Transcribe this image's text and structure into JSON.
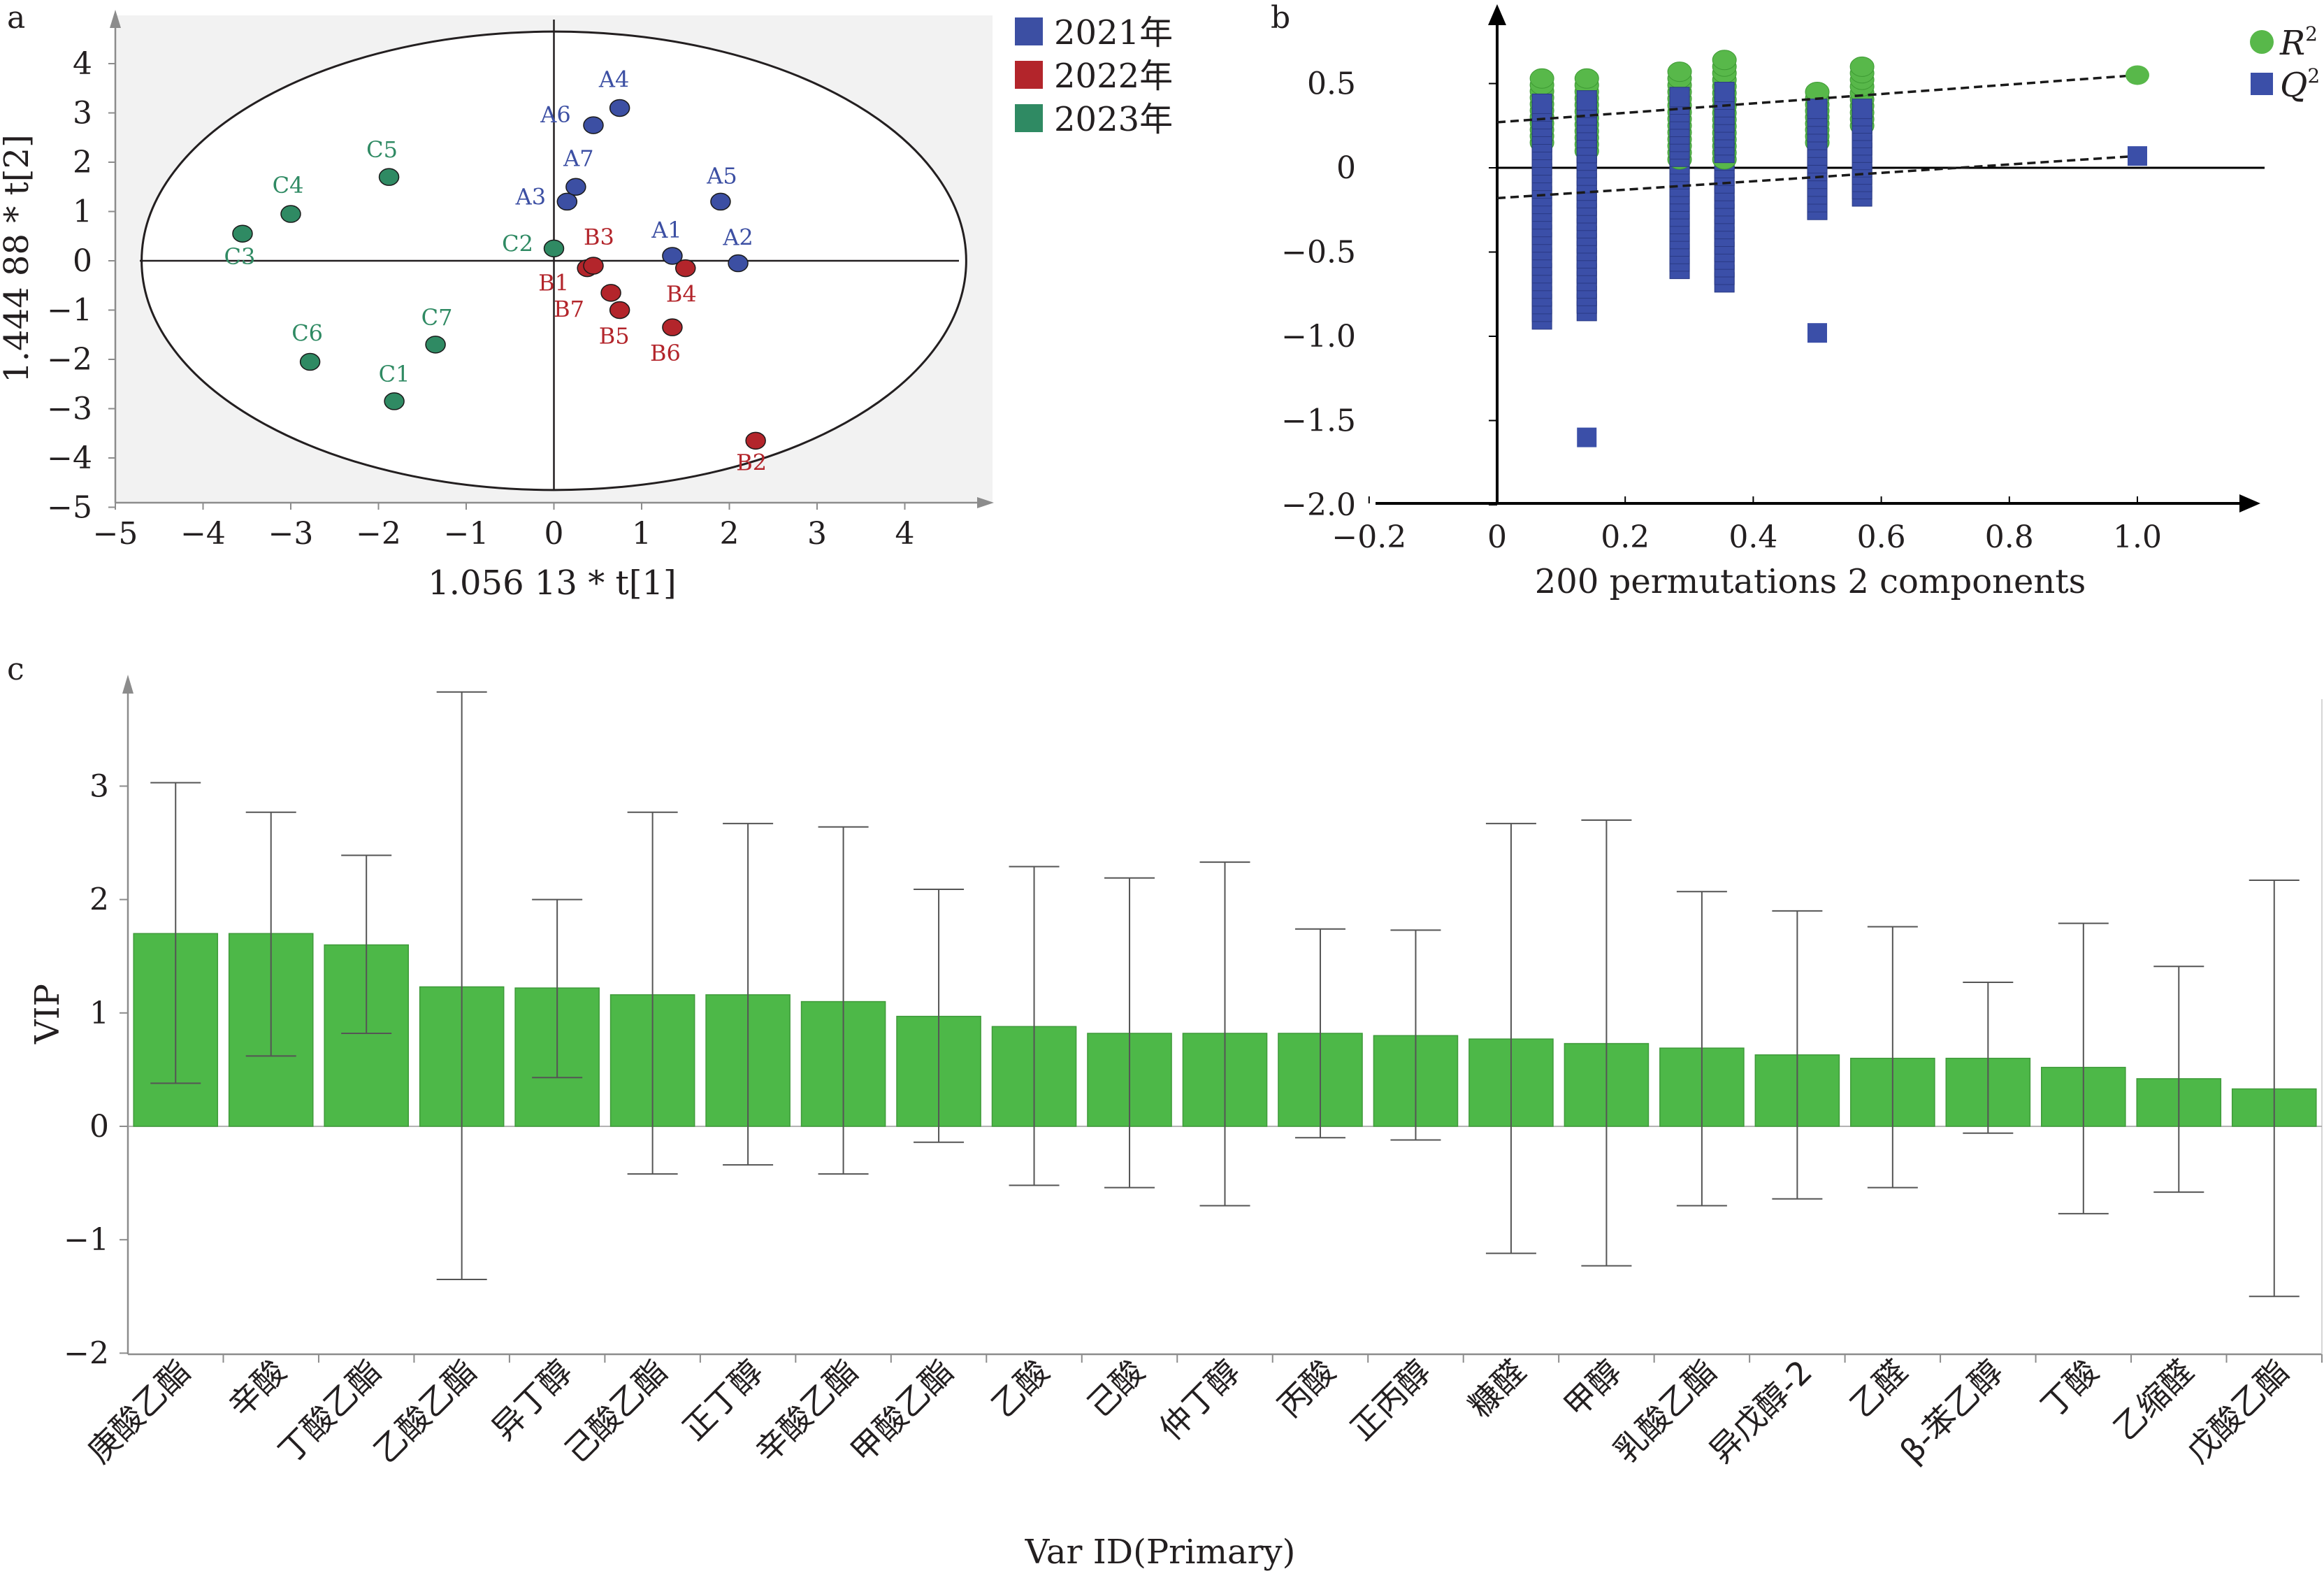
{
  "panels": {
    "a": {
      "letter": "a",
      "xlabel": "1.056 13 * t[1]",
      "ylabel": "1.444 88 * t[2]",
      "x_ticks": [
        "−5",
        "−4",
        "−3",
        "−2",
        "−1",
        "0",
        "1",
        "2",
        "3",
        "4"
      ],
      "y_ticks": [
        "4",
        "3",
        "2",
        "1",
        "0",
        "−1",
        "−2",
        "−3",
        "−4",
        "−5"
      ],
      "legend": [
        {
          "label": "2021年",
          "color": "#3c4fa3"
        },
        {
          "label": "2022年",
          "color": "#b3252b"
        },
        {
          "label": "2023年",
          "color": "#2f8a63"
        }
      ]
    },
    "b": {
      "letter": "b",
      "xlabel": "200 permutations 2 components",
      "x_ticks": [
        "−0.2",
        "0",
        "0.2",
        "0.4",
        "0.6",
        "0.8",
        "1.0"
      ],
      "y_ticks": [
        "0.5",
        "0",
        "−0.5",
        "−1.0",
        "−1.5",
        "−2.0"
      ],
      "legend": [
        {
          "label": "R",
          "sup": "2",
          "color": "#58b84a",
          "marker": "circle"
        },
        {
          "label": "Q",
          "sup": "2",
          "color": "#3b4fa8",
          "marker": "square"
        }
      ]
    },
    "c": {
      "letter": "c",
      "xlabel": "Var ID(Primary)",
      "ylabel": "VIP",
      "y_ticks": [
        "3",
        "2",
        "1",
        "0",
        "−1",
        "−2"
      ]
    }
  },
  "chart_data": [
    {
      "type": "scatter",
      "title": "",
      "xlabel": "1.056 13 * t[1]",
      "ylabel": "1.444 88 * t[2]",
      "xlim": [
        -5,
        5
      ],
      "ylim": [
        -5,
        4.5
      ],
      "ellipse": {
        "cx": 0,
        "cy": 0,
        "rx": 4.7,
        "ry": 4.65
      },
      "series": [
        {
          "name": "2021年",
          "color": "#3c4fa3",
          "points": [
            {
              "label": "A1",
              "x": 1.35,
              "y": 0.1
            },
            {
              "label": "A2",
              "x": 2.1,
              "y": -0.05
            },
            {
              "label": "A3",
              "x": 0.15,
              "y": 1.2
            },
            {
              "label": "A4",
              "x": 0.75,
              "y": 3.1
            },
            {
              "label": "A5",
              "x": 1.9,
              "y": 1.2
            },
            {
              "label": "A6",
              "x": 0.45,
              "y": 2.75
            },
            {
              "label": "A7",
              "x": 0.25,
              "y": 1.5
            }
          ]
        },
        {
          "name": "2022年",
          "color": "#b3252b",
          "points": [
            {
              "label": "B1",
              "x": 0.38,
              "y": -0.15
            },
            {
              "label": "B2",
              "x": 2.3,
              "y": -3.65
            },
            {
              "label": "B3",
              "x": 0.45,
              "y": -0.1
            },
            {
              "label": "B4",
              "x": 1.5,
              "y": -0.15
            },
            {
              "label": "B5",
              "x": 0.75,
              "y": -1.0
            },
            {
              "label": "B6",
              "x": 1.35,
              "y": -1.35
            },
            {
              "label": "B7",
              "x": 0.65,
              "y": -0.65
            }
          ]
        },
        {
          "name": "2023年",
          "color": "#2f8a63",
          "points": [
            {
              "label": "C1",
              "x": -1.82,
              "y": -2.85
            },
            {
              "label": "C2",
              "x": 0.0,
              "y": 0.25
            },
            {
              "label": "C3",
              "x": -3.55,
              "y": 0.55
            },
            {
              "label": "C4",
              "x": -3.0,
              "y": 0.95
            },
            {
              "label": "C5",
              "x": -1.88,
              "y": 1.7
            },
            {
              "label": "C6",
              "x": -2.78,
              "y": -2.05
            },
            {
              "label": "C7",
              "x": -1.35,
              "y": -1.7
            }
          ]
        }
      ]
    },
    {
      "type": "scatter",
      "title": "",
      "xlabel": "200 permutations 2 components",
      "xlim": [
        -0.2,
        1.2
      ],
      "ylim": [
        -2.0,
        0.8
      ],
      "series": [
        {
          "name": "R2",
          "marker": "circle",
          "color": "#58b84a",
          "x_groups": [
            0.07,
            0.14,
            0.285,
            0.355,
            0.5,
            0.57
          ],
          "ranges": [
            [
              0.15,
              0.53
            ],
            [
              0.1,
              0.53
            ],
            [
              0.05,
              0.57
            ],
            [
              0.05,
              0.64
            ],
            [
              0.15,
              0.45
            ],
            [
              0.25,
              0.6
            ]
          ],
          "original": {
            "x": 1.0,
            "y": 0.55
          },
          "fit_line": {
            "intercept": 0.27,
            "end": {
              "x": 1.0,
              "y": 0.55
            }
          }
        },
        {
          "name": "Q2",
          "marker": "square",
          "color": "#3b4fa8",
          "x_groups": [
            0.07,
            0.14,
            0.285,
            0.355,
            0.5,
            0.57
          ],
          "ranges": [
            [
              -0.9,
              0.38
            ],
            [
              -0.85,
              0.4
            ],
            [
              -0.6,
              0.42
            ],
            [
              -0.68,
              0.45
            ],
            [
              -0.25,
              0.35
            ],
            [
              -0.17,
              0.35
            ]
          ],
          "outliers": [
            {
              "x": 0.14,
              "y": -1.6
            },
            {
              "x": 0.5,
              "y": -0.98
            }
          ],
          "original": {
            "x": 1.0,
            "y": 0.07
          },
          "fit_line": {
            "intercept": -0.18,
            "end": {
              "x": 1.0,
              "y": 0.07
            }
          }
        }
      ]
    },
    {
      "type": "bar",
      "title": "",
      "xlabel": "Var ID(Primary)",
      "ylabel": "VIP",
      "ylim": [
        -2,
        3.8
      ],
      "categories": [
        "庚酸乙酯",
        "辛酸",
        "丁酸乙酯",
        "乙酸乙酯",
        "异丁醇",
        "己酸乙酯",
        "正丁醇",
        "辛酸乙酯",
        "甲酸乙酯",
        "乙酸",
        "己酸",
        "仲丁醇",
        "丙酸",
        "正丙醇",
        "糠醛",
        "甲醇",
        "乳酸乙酯",
        "异戊醇-2",
        "乙醛",
        "β-苯乙醇",
        "丁酸",
        "乙缩醛",
        "戊酸乙酯"
      ],
      "values": [
        1.7,
        1.7,
        1.6,
        1.23,
        1.22,
        1.16,
        1.16,
        1.1,
        0.97,
        0.88,
        0.82,
        0.82,
        0.82,
        0.8,
        0.77,
        0.73,
        0.69,
        0.63,
        0.6,
        0.6,
        0.52,
        0.42,
        0.33
      ],
      "error_low": [
        0.38,
        0.62,
        0.82,
        -1.35,
        0.43,
        -0.42,
        -0.34,
        -0.42,
        -0.14,
        -0.52,
        -0.54,
        -0.7,
        -0.1,
        -0.12,
        -1.12,
        -1.23,
        -0.7,
        -0.64,
        -0.54,
        -0.06,
        -0.77,
        -0.58,
        -1.5
      ],
      "error_high": [
        3.03,
        2.77,
        2.39,
        3.83,
        2.0,
        2.77,
        2.67,
        2.64,
        2.09,
        2.29,
        2.19,
        2.33,
        1.74,
        1.73,
        2.67,
        2.7,
        2.07,
        1.9,
        1.76,
        1.27,
        1.79,
        1.41,
        2.17
      ],
      "color": "#4db848"
    }
  ]
}
